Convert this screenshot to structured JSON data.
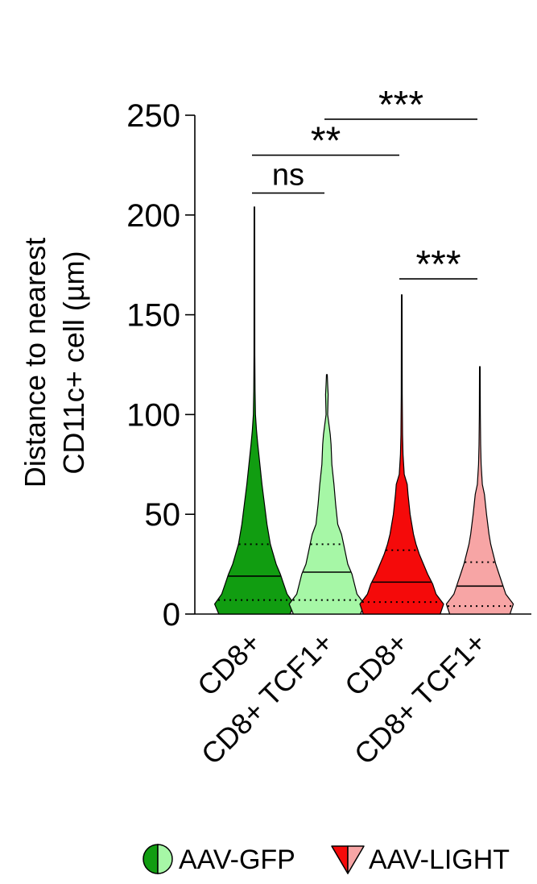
{
  "chart_data": {
    "type": "violin",
    "ylabel_lines": [
      "Distance to nearest",
      "CD11c+ cell (µm)"
    ],
    "ylim": [
      0,
      250
    ],
    "yticks": [
      0,
      50,
      100,
      150,
      200,
      250
    ],
    "categories": [
      "CD8+",
      "CD8+ TCF1+",
      "CD8+",
      "CD8+ TCF1+"
    ],
    "series": [
      {
        "category": "CD8+",
        "group": "AAV-GFP",
        "color": "#119d11",
        "max": 204,
        "q1": 7,
        "median": 19,
        "q3": 35,
        "profile": [
          [
            0,
            0.85
          ],
          [
            5,
            0.95
          ],
          [
            10,
            0.78
          ],
          [
            15,
            0.7
          ],
          [
            20,
            0.62
          ],
          [
            25,
            0.52
          ],
          [
            30,
            0.45
          ],
          [
            35,
            0.38
          ],
          [
            45,
            0.3
          ],
          [
            55,
            0.24
          ],
          [
            65,
            0.18
          ],
          [
            75,
            0.13
          ],
          [
            85,
            0.08
          ],
          [
            92,
            0.05
          ],
          [
            100,
            0.025
          ],
          [
            112,
            0.015
          ],
          [
            130,
            0.01
          ],
          [
            204,
            0.008
          ]
        ]
      },
      {
        "category": "CD8+ TCF1+",
        "group": "AAV-GFP",
        "color": "#a6f7a6",
        "max": 120,
        "q1": 7,
        "median": 21,
        "q3": 35,
        "profile": [
          [
            0,
            0.8
          ],
          [
            5,
            0.9
          ],
          [
            10,
            0.72
          ],
          [
            15,
            0.66
          ],
          [
            20,
            0.6
          ],
          [
            25,
            0.5
          ],
          [
            30,
            0.45
          ],
          [
            35,
            0.4
          ],
          [
            40,
            0.35
          ],
          [
            45,
            0.26
          ],
          [
            55,
            0.21
          ],
          [
            65,
            0.17
          ],
          [
            75,
            0.12
          ],
          [
            85,
            0.1
          ],
          [
            90,
            0.08
          ],
          [
            95,
            0.05
          ],
          [
            100,
            0.02
          ],
          [
            110,
            0.03
          ],
          [
            115,
            0.02
          ],
          [
            120,
            0.01
          ]
        ]
      },
      {
        "category": "CD8+",
        "group": "AAV-LIGHT",
        "color": "#f50a0a",
        "max": 160,
        "q1": 6,
        "median": 16,
        "q3": 32,
        "profile": [
          [
            0,
            0.92
          ],
          [
            5,
            1.0
          ],
          [
            10,
            0.82
          ],
          [
            15,
            0.74
          ],
          [
            20,
            0.62
          ],
          [
            25,
            0.52
          ],
          [
            30,
            0.42
          ],
          [
            35,
            0.34
          ],
          [
            40,
            0.28
          ],
          [
            50,
            0.2
          ],
          [
            60,
            0.15
          ],
          [
            65,
            0.13
          ],
          [
            70,
            0.06
          ],
          [
            80,
            0.03
          ],
          [
            90,
            0.02
          ],
          [
            110,
            0.012
          ],
          [
            160,
            0.008
          ]
        ]
      },
      {
        "category": "CD8+ TCF1+",
        "group": "AAV-LIGHT",
        "color": "#f7a5a5",
        "max": 124,
        "q1": 4,
        "median": 14,
        "q3": 26,
        "profile": [
          [
            0,
            0.72
          ],
          [
            5,
            0.8
          ],
          [
            10,
            0.62
          ],
          [
            15,
            0.54
          ],
          [
            20,
            0.46
          ],
          [
            25,
            0.38
          ],
          [
            30,
            0.32
          ],
          [
            35,
            0.26
          ],
          [
            40,
            0.22
          ],
          [
            50,
            0.16
          ],
          [
            60,
            0.11
          ],
          [
            65,
            0.06
          ],
          [
            75,
            0.03
          ],
          [
            85,
            0.02
          ],
          [
            100,
            0.012
          ],
          [
            124,
            0.008
          ]
        ]
      }
    ],
    "significance": [
      {
        "from": 0,
        "to": 1,
        "label": "ns",
        "y": 211
      },
      {
        "from": 0,
        "to": 2,
        "label": "**",
        "y": 230
      },
      {
        "from": 1,
        "to": 3,
        "label": "***",
        "y": 248
      },
      {
        "from": 2,
        "to": 3,
        "label": "***",
        "y": 168
      }
    ],
    "legend": [
      {
        "label": "AAV-GFP",
        "symbol": "half-circle",
        "colors": [
          "#119d11",
          "#a6f7a6"
        ]
      },
      {
        "label": "AAV-LIGHT",
        "symbol": "half-triangle",
        "colors": [
          "#f50a0a",
          "#f7a5a5"
        ]
      }
    ],
    "legend_placement": "bottom"
  }
}
